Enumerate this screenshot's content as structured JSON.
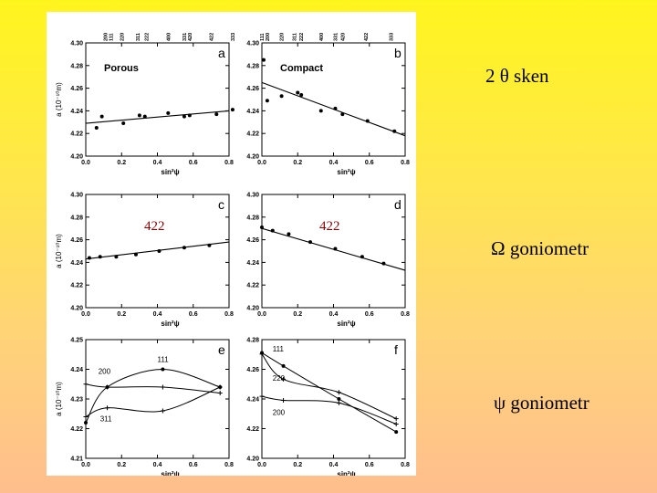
{
  "captions": {
    "two_theta": "2 θ sken",
    "omega": "Ω goniometr",
    "psi": "ψ goniometr"
  },
  "overlay_labels": [
    "422",
    "422"
  ],
  "colors": {
    "figure_bg": "#ffffff",
    "ink": "#000000",
    "overlay_text": "#8b0000"
  },
  "chart_data": [
    {
      "id": "a",
      "type": "scatter",
      "annotation": "Porous",
      "panel_letter": "a",
      "xlabel": "sin²ψ",
      "ylabel": "a (10⁻¹⁰m)",
      "xlim": [
        0,
        0.8
      ],
      "ylim": [
        4.2,
        4.3
      ],
      "xticks": [
        "0.0",
        "0.2",
        "0.4",
        "0.6",
        "0.8"
      ],
      "yticks": [
        "4.20",
        "4.22",
        "4.24",
        "4.26",
        "4.28",
        "4.30"
      ],
      "top_labels": [
        {
          "text": "200",
          "x": 0.11
        },
        {
          "text": "111",
          "x": 0.14
        },
        {
          "text": "220",
          "x": 0.2
        },
        {
          "text": "311",
          "x": 0.29
        },
        {
          "text": "222",
          "x": 0.34
        },
        {
          "text": "400",
          "x": 0.46
        },
        {
          "text": "331",
          "x": 0.55
        },
        {
          "text": "420",
          "x": 0.58
        },
        {
          "text": "422",
          "x": 0.7
        },
        {
          "text": "333",
          "x": 0.82
        }
      ],
      "points": [
        [
          0.06,
          4.225
        ],
        [
          0.09,
          4.235
        ],
        [
          0.21,
          4.229
        ],
        [
          0.3,
          4.236
        ],
        [
          0.33,
          4.235
        ],
        [
          0.46,
          4.238
        ],
        [
          0.55,
          4.235
        ],
        [
          0.58,
          4.236
        ],
        [
          0.73,
          4.237
        ],
        [
          0.82,
          4.241
        ]
      ],
      "fit": [
        [
          0.0,
          4.229
        ],
        [
          0.8,
          4.24
        ]
      ]
    },
    {
      "id": "b",
      "type": "scatter",
      "annotation": "Compact",
      "panel_letter": "b",
      "xlabel": "sin²ψ",
      "ylabel": "",
      "xlim": [
        0,
        0.8
      ],
      "ylim": [
        4.2,
        4.3
      ],
      "xticks": [
        "0.0",
        "0.2",
        "0.4",
        "0.6",
        "0.8"
      ],
      "yticks": [
        "4.20",
        "4.22",
        "4.24",
        "4.26",
        "4.28",
        "4.30"
      ],
      "top_labels": [
        {
          "text": "111",
          "x": 0.0
        },
        {
          "text": "200",
          "x": 0.03
        },
        {
          "text": "220",
          "x": 0.11
        },
        {
          "text": "311",
          "x": 0.18
        },
        {
          "text": "222",
          "x": 0.22
        },
        {
          "text": "400",
          "x": 0.33
        },
        {
          "text": "331",
          "x": 0.41
        },
        {
          "text": "420",
          "x": 0.45
        },
        {
          "text": "422",
          "x": 0.58
        },
        {
          "text": "333",
          "x": 0.72
        }
      ],
      "points": [
        [
          0.01,
          4.285
        ],
        [
          0.03,
          4.249
        ],
        [
          0.11,
          4.253
        ],
        [
          0.2,
          4.256
        ],
        [
          0.22,
          4.254
        ],
        [
          0.33,
          4.24
        ],
        [
          0.41,
          4.242
        ],
        [
          0.45,
          4.237
        ],
        [
          0.59,
          4.231
        ],
        [
          0.74,
          4.222
        ]
      ],
      "fit": [
        [
          0.0,
          4.265
        ],
        [
          0.8,
          4.218
        ]
      ]
    },
    {
      "id": "c",
      "type": "scatter",
      "annotation": "",
      "panel_letter": "c",
      "xlabel": "sin²ψ",
      "ylabel": "a (10⁻¹⁰m)",
      "xlim": [
        0,
        0.8
      ],
      "ylim": [
        4.2,
        4.3
      ],
      "xticks": [
        "0.0",
        "0.2",
        "0.4",
        "0.6",
        "0.8"
      ],
      "yticks": [
        "4.20",
        "4.22",
        "4.24",
        "4.26",
        "4.28",
        "4.30"
      ],
      "top_labels": [],
      "points": [
        [
          0.02,
          4.244
        ],
        [
          0.08,
          4.245
        ],
        [
          0.17,
          4.245
        ],
        [
          0.28,
          4.247
        ],
        [
          0.41,
          4.25
        ],
        [
          0.55,
          4.253
        ],
        [
          0.69,
          4.255
        ]
      ],
      "fit": [
        [
          0.0,
          4.243
        ],
        [
          0.8,
          4.258
        ]
      ]
    },
    {
      "id": "d",
      "type": "scatter",
      "annotation": "",
      "panel_letter": "d",
      "xlabel": "sin²ψ",
      "ylabel": "",
      "xlim": [
        0,
        0.8
      ],
      "ylim": [
        4.2,
        4.3
      ],
      "xticks": [
        "0.0",
        "0.2",
        "0.4",
        "0.6",
        "0.8"
      ],
      "yticks": [
        "4.20",
        "4.22",
        "4.24",
        "4.26",
        "4.28",
        "4.30"
      ],
      "top_labels": [],
      "points": [
        [
          0.0,
          4.271
        ],
        [
          0.06,
          4.268
        ],
        [
          0.15,
          4.265
        ],
        [
          0.27,
          4.258
        ],
        [
          0.41,
          4.252
        ],
        [
          0.56,
          4.245
        ],
        [
          0.68,
          4.239
        ]
      ],
      "fit": [
        [
          0.0,
          4.27
        ],
        [
          0.8,
          4.233
        ]
      ]
    },
    {
      "id": "e",
      "type": "line",
      "annotation": "",
      "panel_letter": "e",
      "xlabel": "sin²ψ",
      "ylabel": "a (10⁻¹⁰m)",
      "xlim": [
        0,
        0.8
      ],
      "ylim": [
        4.21,
        4.25
      ],
      "xticks": [
        "0.0",
        "0.2",
        "0.4",
        "0.6",
        "0.8"
      ],
      "yticks": [
        "4.21",
        "4.22",
        "4.23",
        "4.24",
        "4.25"
      ],
      "top_labels": [],
      "series": [
        {
          "name": "111",
          "marker": "dot",
          "x": [
            0.0,
            0.12,
            0.43,
            0.75
          ],
          "y": [
            4.222,
            4.234,
            4.24,
            4.234
          ],
          "label_at": [
            0.4,
            4.2425
          ]
        },
        {
          "name": "200",
          "marker": "plus",
          "x": [
            0.0,
            0.12,
            0.43,
            0.75
          ],
          "y": [
            4.235,
            4.234,
            4.234,
            4.232
          ],
          "label_at": [
            0.07,
            4.2385
          ]
        },
        {
          "name": "311",
          "marker": "plus",
          "x": [
            0.0,
            0.12,
            0.43,
            0.75
          ],
          "y": [
            4.224,
            4.227,
            4.226,
            4.234
          ],
          "label_at": [
            0.08,
            4.2225
          ]
        }
      ]
    },
    {
      "id": "f",
      "type": "line",
      "annotation": "",
      "panel_letter": "f",
      "xlabel": "sin²ψ",
      "ylabel": "",
      "xlim": [
        0,
        0.8
      ],
      "ylim": [
        4.2,
        4.29
      ],
      "xticks": [
        "0.0",
        "0.2",
        "0.4",
        "0.6",
        "0.8"
      ],
      "yticks": [
        "4.20",
        "4.22",
        "4.24",
        "4.26",
        "4.28"
      ],
      "top_labels": [],
      "series": [
        {
          "name": "111",
          "marker": "dot",
          "x": [
            0.0,
            0.12,
            0.43,
            0.75
          ],
          "y": [
            4.28,
            4.27,
            4.245,
            4.22
          ],
          "label_at": [
            0.06,
            4.281
          ]
        },
        {
          "name": "220",
          "marker": "plus",
          "x": [
            0.0,
            0.12,
            0.43,
            0.75
          ],
          "y": [
            4.279,
            4.26,
            4.25,
            4.23
          ],
          "label_at": [
            0.06,
            4.259
          ]
        },
        {
          "name": "200",
          "marker": "plus",
          "x": [
            0.0,
            0.12,
            0.43,
            0.75
          ],
          "y": [
            4.247,
            4.244,
            4.242,
            4.226
          ],
          "label_at": [
            0.06,
            4.233
          ]
        }
      ]
    }
  ]
}
